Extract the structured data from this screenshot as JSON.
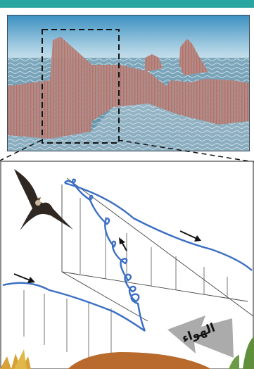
{
  "colors": {
    "accent_bar": "#2aa6a0",
    "sky_top": "#3c91c2",
    "sea": "#6f9fb5",
    "wave_front": "#dbe5ea",
    "trajectory": "#3b6fc4",
    "arrow_label_bg": "#9c9c9c",
    "bird": "#2f2722"
  },
  "icons": {
    "bird": "frigatebird-icon",
    "flight_path": "looping-trajectory",
    "wind": "wind-arrow-icon"
  },
  "wind_label": "الهواء"
}
